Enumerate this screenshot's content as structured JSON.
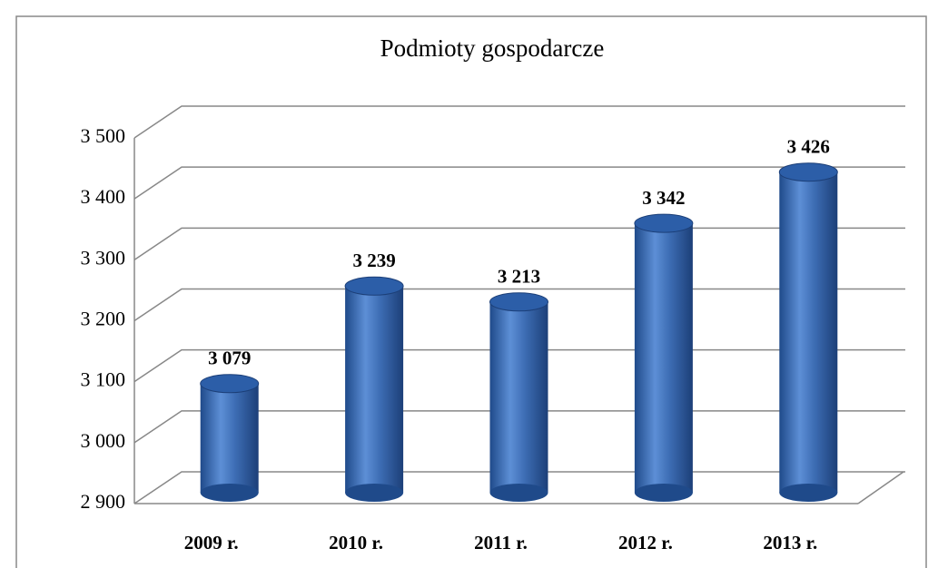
{
  "chart_data": {
    "type": "bar",
    "title": "Podmioty gospodarcze",
    "categories": [
      "2009 r.",
      "2010 r.",
      "2011 r.",
      "2012 r.",
      "2013 r."
    ],
    "values": [
      3079,
      3239,
      3213,
      3342,
      3426
    ],
    "value_labels": [
      "3 079",
      "3 239",
      "3 213",
      "3 342",
      "3 426"
    ],
    "color": "#3d6db4",
    "ylim": [
      2900,
      3500
    ],
    "yticks": [
      {
        "value": 2900,
        "label": "2 900"
      },
      {
        "value": 3000,
        "label": "3 000"
      },
      {
        "value": 3100,
        "label": "3 100"
      },
      {
        "value": 3200,
        "label": "3 200"
      },
      {
        "value": 3300,
        "label": "3 300"
      },
      {
        "value": 3400,
        "label": "3 400"
      },
      {
        "value": 3500,
        "label": "3 500"
      }
    ],
    "grid": true
  }
}
